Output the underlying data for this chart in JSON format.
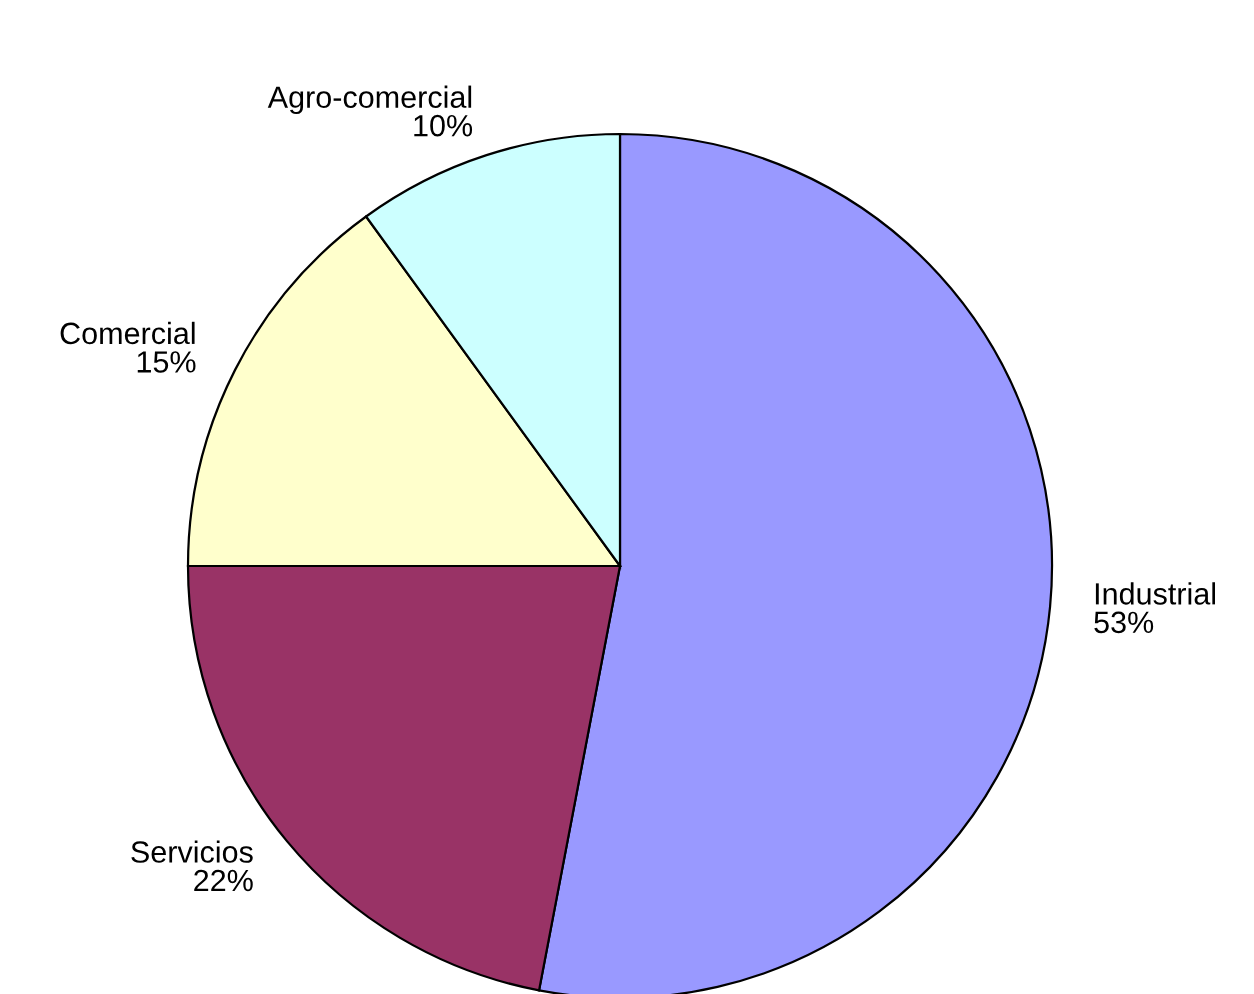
{
  "chart_data": {
    "type": "pie",
    "categories": [
      "Industrial",
      "Servicios",
      "Comercial",
      "Agro-comercial"
    ],
    "values": [
      53,
      22,
      15,
      10
    ],
    "value_labels": [
      "53%",
      "22%",
      "15%",
      "10%"
    ],
    "colors": [
      "#9999ff",
      "#993366",
      "#ffffcc",
      "#ccffff"
    ]
  }
}
